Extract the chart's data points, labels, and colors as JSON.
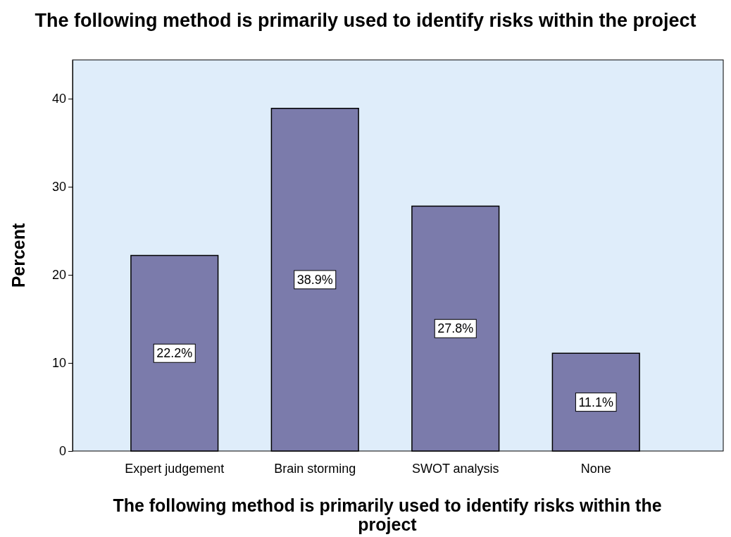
{
  "chart_data": {
    "type": "bar",
    "title": "The following method is primarily used to identify risks within the project",
    "xlabel": "The following method is primarily used to identify risks within the project",
    "ylabel": "Percent",
    "categories": [
      "Expert judgement",
      "Brain storming",
      "SWOT analysis",
      "None"
    ],
    "values": [
      22.2,
      38.9,
      27.8,
      11.1
    ],
    "color": "#7b7bab",
    "value_labels": [
      "22.2%",
      "38.9%",
      "27.8%",
      "11.1%"
    ],
    "ylim": [
      0,
      44.4
    ],
    "yticks": [
      0,
      10,
      20,
      30,
      40
    ],
    "grid": false
  }
}
